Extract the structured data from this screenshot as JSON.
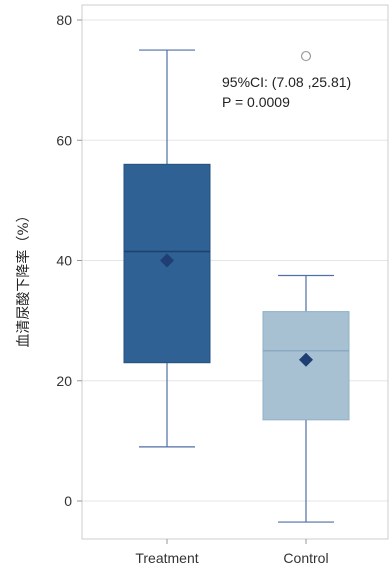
{
  "chart_data": {
    "type": "box",
    "ylabel": "血清尿酸下降率（%）",
    "ylim": [
      -5,
      82
    ],
    "yticks": [
      0,
      20,
      40,
      60,
      80
    ],
    "grid": true,
    "categories": [
      "Treatment",
      "Control"
    ],
    "boxes": [
      {
        "name": "Treatment",
        "whisker_low": 9,
        "q1": 23,
        "median": 41.5,
        "q3": 56,
        "whisker_high": 75,
        "mean": 40,
        "outliers": [],
        "color": "#2f6194"
      },
      {
        "name": "Control",
        "whisker_low": -3.5,
        "q1": 13.5,
        "median": 25,
        "q3": 31.5,
        "whisker_high": 37.5,
        "mean": 23.5,
        "outliers": [
          74
        ],
        "color": "#a7c1d3"
      }
    ],
    "annotations": [
      "95%CI: (7.08 ,25.81)",
      "P = 0.0009"
    ],
    "colors": {
      "frame": "#cccccc",
      "grid": "#e6e6e6",
      "whisker": "#4f6fa5",
      "mean_marker": "#1f3f74"
    }
  }
}
